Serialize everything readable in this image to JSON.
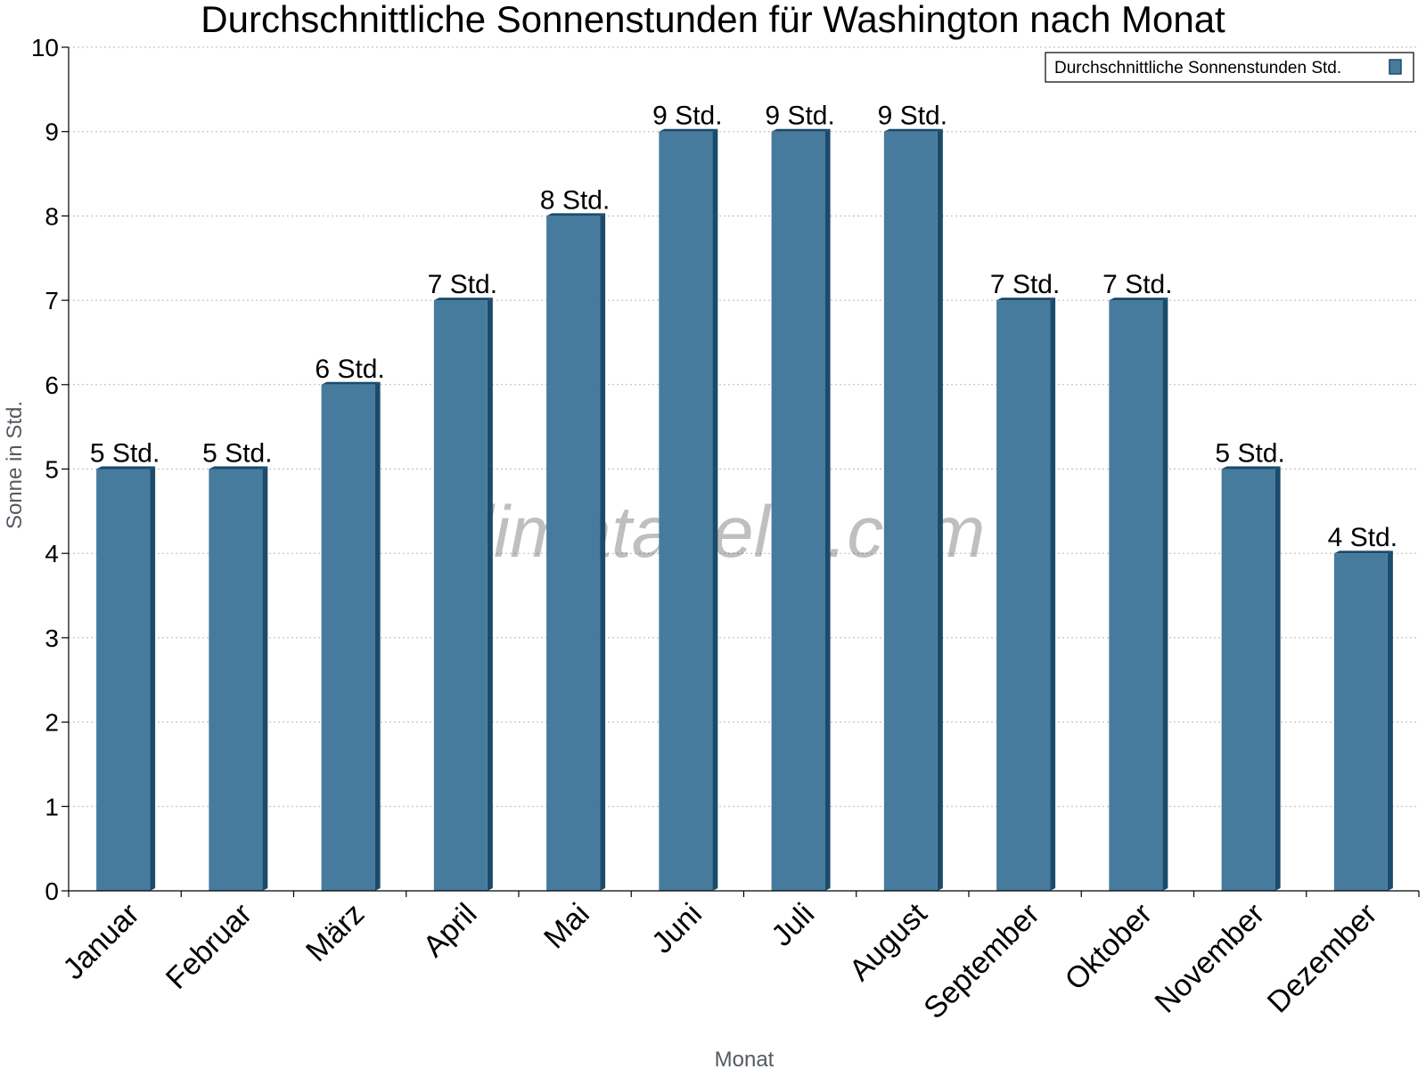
{
  "chart_data": {
    "type": "bar",
    "title": "Durchschnittliche Sonnenstunden für Washington nach Monat",
    "xlabel": "Monat",
    "ylabel": "Sonne in Std.",
    "ylim": [
      0,
      10
    ],
    "yticks": [
      0,
      1,
      2,
      3,
      4,
      5,
      6,
      7,
      8,
      9,
      10
    ],
    "grid": true,
    "legend_position": "top-right",
    "categories": [
      "Januar",
      "Februar",
      "März",
      "April",
      "Mai",
      "Juni",
      "Juli",
      "August",
      "September",
      "Oktober",
      "November",
      "Dezember"
    ],
    "series": [
      {
        "name": "Durchschnittliche Sonnenstunden Std.",
        "values": [
          5,
          5,
          6,
          7,
          8,
          9,
          9,
          9,
          7,
          7,
          5,
          4
        ],
        "labels": [
          "5 Std.",
          "5 Std.",
          "6 Std.",
          "7 Std.",
          "8 Std.",
          "9 Std.",
          "9 Std.",
          "9 Std.",
          "7 Std.",
          "7 Std.",
          "5 Std.",
          "4 Std."
        ],
        "color": "#467b9e",
        "side_color": "#1b4b6b"
      }
    ],
    "watermark": "klimatabelle.com"
  }
}
